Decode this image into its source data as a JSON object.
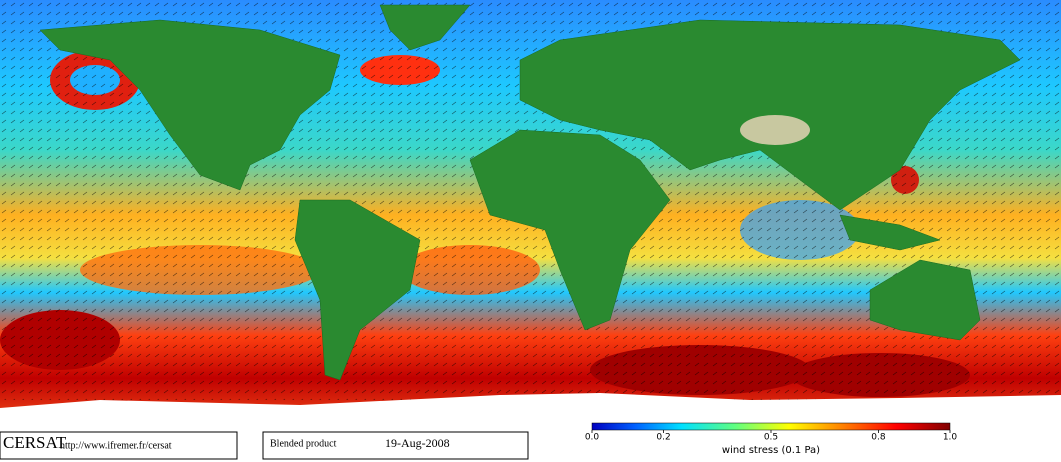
{
  "header": {
    "brand": "CERSAT",
    "url": "http://www.ifremer.fr/cersat",
    "product": "Blended product",
    "date": "19-Aug-2008"
  },
  "colorbar": {
    "label": "wind stress (0.1 Pa)",
    "ticks": [
      {
        "value": 0,
        "label": "0.0"
      },
      {
        "value": 0.2,
        "label": "0.2"
      },
      {
        "value": 0.5,
        "label": "0.5"
      },
      {
        "value": 0.8,
        "label": "0.8"
      },
      {
        "value": 1,
        "label": "1.0"
      }
    ]
  }
}
